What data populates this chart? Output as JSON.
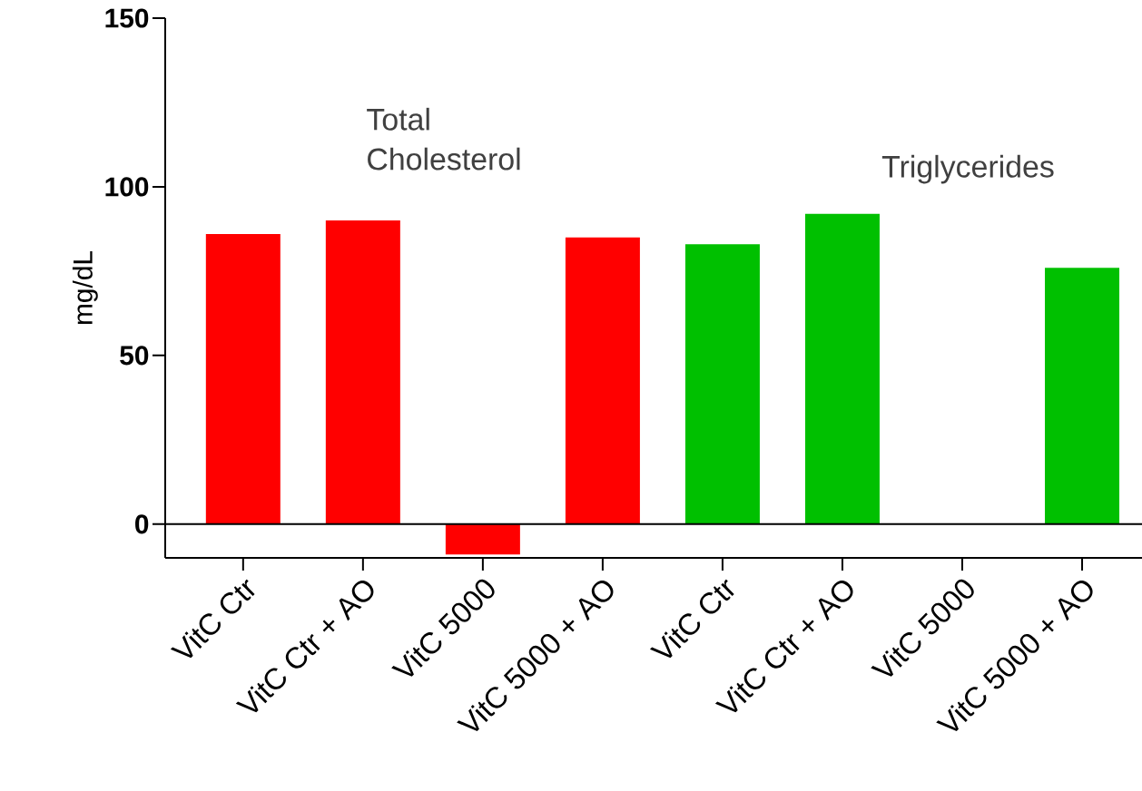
{
  "chart_data": {
    "type": "bar",
    "ylabel": "mg/dL",
    "categories": [
      "VitC Ctr",
      "VitC Ctr + AO",
      "VitC 5000",
      "VitC 5000 + AO",
      "VitC Ctr",
      "VitC Ctr + AO",
      "VitC 5000",
      "VitC 5000 + AO"
    ],
    "series": [
      {
        "color": "#ff0000",
        "values": [
          86,
          90,
          -9,
          85,
          null,
          null,
          null,
          null
        ]
      },
      {
        "color": "#00c000",
        "values": [
          null,
          null,
          null,
          null,
          83,
          92,
          null,
          76
        ]
      }
    ],
    "ylim": [
      -10,
      150
    ],
    "yticks": [
      0,
      50,
      100,
      150
    ],
    "ref_lines": [
      {
        "axis": "y",
        "value": 0,
        "color": "#000000",
        "line_style": "solid"
      }
    ],
    "annotations": [
      "Total Cholesterol",
      "Triglycerides"
    ],
    "grid": false
  }
}
